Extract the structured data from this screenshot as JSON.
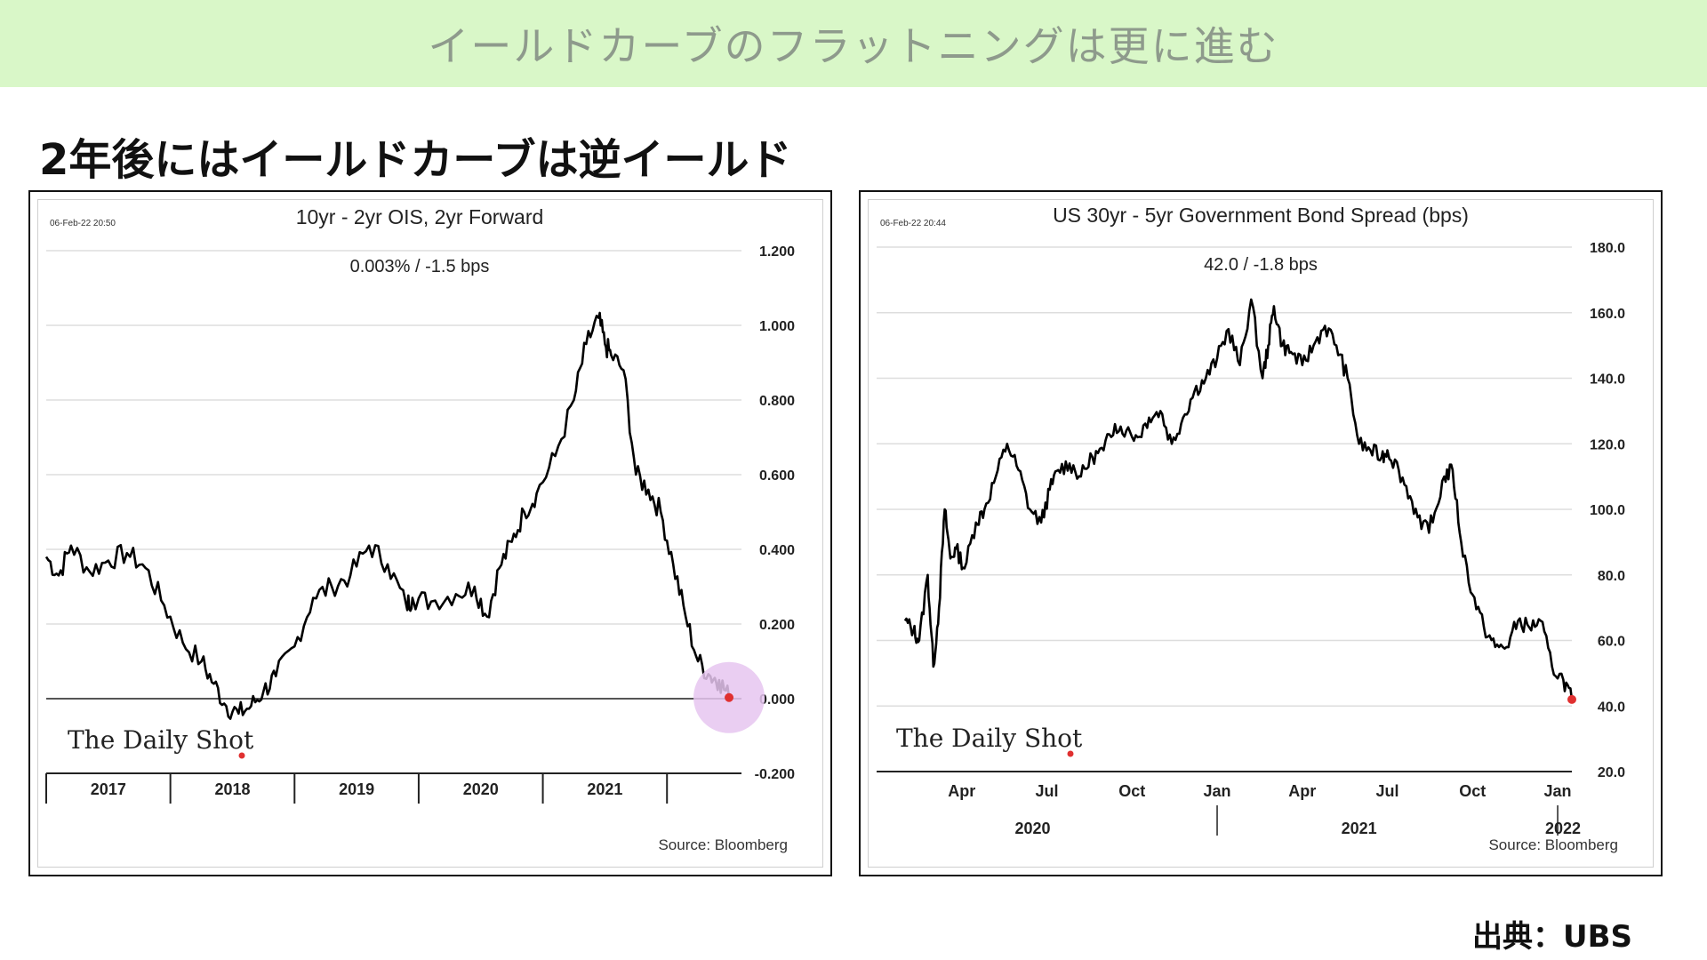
{
  "page": {
    "banner_title": "イールドカーブのフラットニングは更に進む",
    "subheading": "2年後にはイールドカーブは逆イールド",
    "credit": "出典：UBS"
  },
  "colors": {
    "banner_bg": "#d9f7c8",
    "line": "#000000",
    "marker": "#e03030",
    "highlight": "#e6c6f0",
    "grid": "#dddddd"
  },
  "chart_data": [
    {
      "type": "line",
      "title": "10yr - 2yr OIS, 2yr Forward",
      "timestamp": "06-Feb-22 20:50",
      "readout": "0.003%  /  -1.5 bps",
      "source": "Source: Bloomberg",
      "watermark": "The Daily Shot",
      "ylim": [
        -0.2,
        1.2
      ],
      "yticks": [
        1.2,
        1.0,
        0.8,
        0.6,
        0.4,
        0.2,
        0.0,
        -0.2
      ],
      "ytick_labels": [
        "1.200",
        "1.000",
        "0.800",
        "0.600",
        "0.400",
        "0.200",
        "0.000",
        "-0.200"
      ],
      "xlim": [
        2016.5,
        2022.1
      ],
      "xticks": [
        2016.5,
        2017.5,
        2018.5,
        2019.5,
        2020.5,
        2021.5
      ],
      "x_labels": [
        {
          "label": "2017",
          "x": 2017.0
        },
        {
          "label": "2018",
          "x": 2018.0
        },
        {
          "label": "2019",
          "x": 2019.0
        },
        {
          "label": "2020",
          "x": 2020.0
        },
        {
          "label": "2021",
          "x": 2021.0
        }
      ],
      "zero_line": true,
      "highlight_last": true,
      "series": [
        {
          "x": [
            2016.5,
            2016.6,
            2016.7,
            2016.85,
            2017.0,
            2017.15,
            2017.3,
            2017.45,
            2017.6,
            2017.75,
            2017.85,
            2017.95,
            2018.05,
            2018.15,
            2018.25,
            2018.35,
            2018.5,
            2018.65,
            2018.8,
            2018.95,
            2019.1,
            2019.25,
            2019.4,
            2019.45,
            2019.6,
            2019.8,
            2019.95,
            2020.05,
            2020.15,
            2020.25,
            2020.35,
            2020.45,
            2020.6,
            2020.75,
            2020.85,
            2020.95,
            2021.0,
            2021.05,
            2021.15,
            2021.25,
            2021.35,
            2021.45,
            2021.55,
            2021.65,
            2021.75,
            2021.85,
            2021.92,
            2022.0
          ],
          "y": [
            0.38,
            0.33,
            0.41,
            0.34,
            0.37,
            0.39,
            0.35,
            0.25,
            0.15,
            0.1,
            0.04,
            -0.02,
            -0.04,
            -0.02,
            0.02,
            0.06,
            0.14,
            0.27,
            0.3,
            0.33,
            0.41,
            0.36,
            0.25,
            0.27,
            0.26,
            0.28,
            0.3,
            0.22,
            0.35,
            0.42,
            0.5,
            0.55,
            0.65,
            0.8,
            0.95,
            1.02,
            0.95,
            0.92,
            0.88,
            0.6,
            0.56,
            0.5,
            0.36,
            0.22,
            0.1,
            0.06,
            0.05,
            0.003
          ]
        }
      ]
    },
    {
      "type": "line",
      "title": "US 30yr - 5yr Government Bond Spread (bps)",
      "timestamp": "06-Feb-22 20:44",
      "readout": "42.0  /  -1.8 bps",
      "source": "Source: Bloomberg",
      "watermark": "The Daily Shot",
      "ylim": [
        20,
        180
      ],
      "yticks": [
        180,
        160,
        140,
        120,
        100,
        80,
        60,
        40,
        20
      ],
      "ytick_labels": [
        "180.0",
        "160.0",
        "140.0",
        "120.0",
        "100.0",
        "80.0",
        "60.0",
        "40.0",
        "20.0"
      ],
      "xlim": [
        0.0,
        24.5
      ],
      "month_ticks": [
        {
          "label": "Apr",
          "x": 3.0
        },
        {
          "label": "Jul",
          "x": 6.0
        },
        {
          "label": "Oct",
          "x": 9.0
        },
        {
          "label": "Jan",
          "x": 12.0
        },
        {
          "label": "Apr",
          "x": 15.0
        },
        {
          "label": "Jul",
          "x": 18.0
        },
        {
          "label": "Oct",
          "x": 21.0
        },
        {
          "label": "Jan",
          "x": 24.0
        }
      ],
      "year_labels": [
        {
          "label": "2020",
          "x": 5.5
        },
        {
          "label": "2021",
          "x": 17.0
        },
        {
          "label": "2022",
          "x": 24.9
        }
      ],
      "year_dividers": [
        12.0,
        24.0
      ],
      "series": [
        {
          "x": [
            1.0,
            1.3,
            1.5,
            1.8,
            2.0,
            2.2,
            2.4,
            2.6,
            2.8,
            3.1,
            3.5,
            3.8,
            4.2,
            4.6,
            5.0,
            5.4,
            5.8,
            6.1,
            6.4,
            6.8,
            7.2,
            7.6,
            8.0,
            8.4,
            8.8,
            9.2,
            9.6,
            10.0,
            10.4,
            10.8,
            11.2,
            11.6,
            12.0,
            12.4,
            12.8,
            13.2,
            13.6,
            13.8,
            14.0,
            14.3,
            14.6,
            15.0,
            15.4,
            15.8,
            16.2,
            16.6,
            17.0,
            17.4,
            17.8,
            18.0,
            18.4,
            18.8,
            19.2,
            19.6,
            20.0,
            20.3,
            20.6,
            21.0,
            21.4,
            21.8,
            22.2,
            22.6,
            23.0,
            23.4,
            23.8,
            24.2,
            24.5
          ],
          "y": [
            66,
            63,
            60,
            80,
            52,
            70,
            100,
            85,
            88,
            82,
            96,
            100,
            110,
            120,
            112,
            100,
            96,
            106,
            112,
            114,
            110,
            116,
            118,
            126,
            124,
            122,
            128,
            130,
            120,
            128,
            136,
            140,
            146,
            155,
            144,
            164,
            140,
            150,
            162,
            150,
            148,
            144,
            150,
            156,
            150,
            140,
            120,
            118,
            116,
            118,
            112,
            104,
            94,
            96,
            110,
            112,
            90,
            74,
            64,
            58,
            58,
            66,
            64,
            66,
            52,
            48,
            42
          ]
        }
      ]
    }
  ]
}
